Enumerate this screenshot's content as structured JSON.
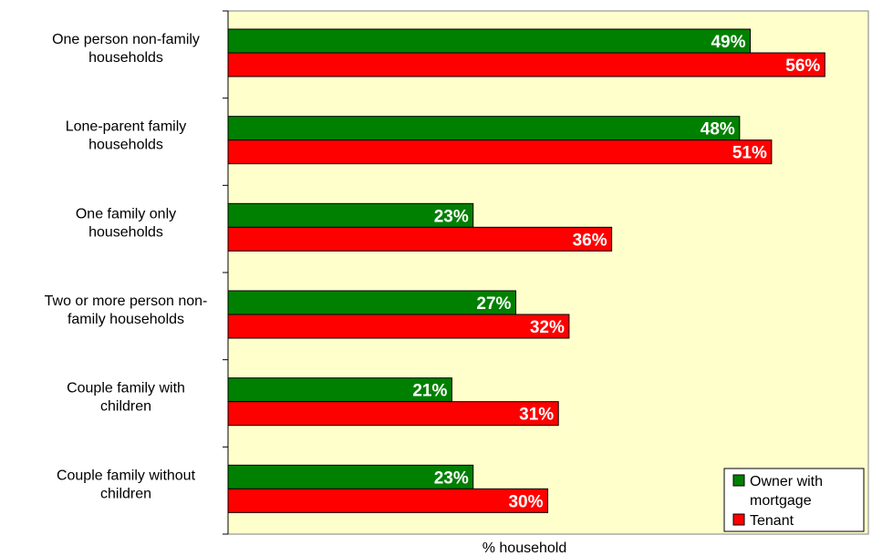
{
  "chart_data": {
    "type": "bar",
    "orientation": "horizontal",
    "categories": [
      [
        "One person non-family",
        "households"
      ],
      [
        "Lone-parent family",
        "households"
      ],
      [
        "One family only",
        "households"
      ],
      [
        "Two or more person non-",
        "family households"
      ],
      [
        "Couple family with",
        "children"
      ],
      [
        "Couple family without",
        "children"
      ]
    ],
    "series": [
      {
        "name": "Owner with mortgage",
        "color": "#008000",
        "values": [
          49,
          48,
          23,
          27,
          21,
          23
        ],
        "labels": [
          "49%",
          "48%",
          "23%",
          "27%",
          "21%",
          "23%"
        ]
      },
      {
        "name": "Tenant",
        "color": "#ff0000",
        "values": [
          56,
          51,
          36,
          32,
          31,
          30
        ],
        "labels": [
          "56%",
          "51%",
          "36%",
          "32%",
          "31%",
          "30%"
        ]
      }
    ],
    "xlabel": "% household",
    "xlim": [
      0,
      60
    ],
    "plot_background": "#ffffcc",
    "legend_position": "bottom-right",
    "grid": false
  },
  "legend": {
    "line1": "Owner with",
    "line2": "mortgage",
    "tenant": "Tenant"
  }
}
